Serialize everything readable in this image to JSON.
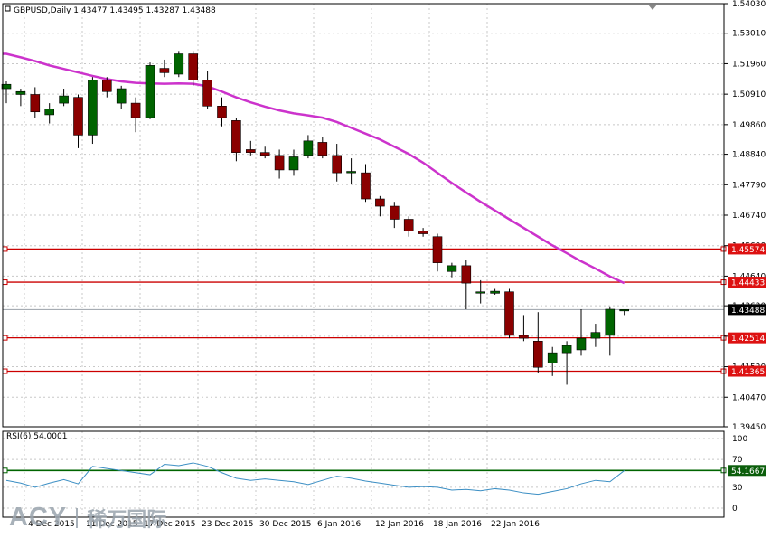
{
  "symbol_header": "GBPUSD,Daily  1.43477 1.43495 1.43287 1.43488",
  "rsi_header": "RSI(6) 54.0001",
  "watermark": {
    "brand": "ACY",
    "chinese": "稀万国际"
  },
  "colors": {
    "bull": "#006400",
    "bear": "#8b0000",
    "ma": "#cc33cc",
    "level": "#cc0000",
    "rsi_line": "#3c8fc4",
    "rsi_level": "#006400",
    "grid": "#c8c8c8",
    "frame": "#000000"
  },
  "chart_data": [
    {
      "type": "candlestick",
      "title": "GBPUSD,Daily",
      "x_tick_labels": [
        "4 Dec 2015",
        "11 Dec 2015",
        "17 Dec 2015",
        "23 Dec 2015",
        "30 Dec 2015",
        "6 Jan 2016",
        "12 Jan 2016",
        "18 Jan 2016",
        "22 Jan 2016"
      ],
      "y_tick_labels": [
        "1.54030",
        "1.53010",
        "1.51960",
        "1.50910",
        "1.49860",
        "1.48840",
        "1.47790",
        "1.46740",
        "1.45690",
        "1.44640",
        "1.43620",
        "1.42570",
        "1.41520",
        "1.40470",
        "1.39450"
      ],
      "ylim": [
        1.3945,
        1.5403
      ],
      "grid": true,
      "candles": [
        {
          "o": 1.511,
          "h": 1.5135,
          "l": 1.506,
          "c": 1.5125
        },
        {
          "o": 1.509,
          "h": 1.511,
          "l": 1.505,
          "c": 1.51
        },
        {
          "o": 1.509,
          "h": 1.5115,
          "l": 1.501,
          "c": 1.503
        },
        {
          "o": 1.502,
          "h": 1.506,
          "l": 1.499,
          "c": 1.504
        },
        {
          "o": 1.506,
          "h": 1.511,
          "l": 1.505,
          "c": 1.5085
        },
        {
          "o": 1.508,
          "h": 1.509,
          "l": 1.4905,
          "c": 1.495
        },
        {
          "o": 1.495,
          "h": 1.515,
          "l": 1.492,
          "c": 1.514
        },
        {
          "o": 1.514,
          "h": 1.515,
          "l": 1.508,
          "c": 1.51
        },
        {
          "o": 1.506,
          "h": 1.512,
          "l": 1.504,
          "c": 1.511
        },
        {
          "o": 1.506,
          "h": 1.508,
          "l": 1.496,
          "c": 1.501
        },
        {
          "o": 1.501,
          "h": 1.52,
          "l": 1.5005,
          "c": 1.519
        },
        {
          "o": 1.518,
          "h": 1.521,
          "l": 1.515,
          "c": 1.5165
        },
        {
          "o": 1.516,
          "h": 1.524,
          "l": 1.515,
          "c": 1.523
        },
        {
          "o": 1.523,
          "h": 1.524,
          "l": 1.512,
          "c": 1.514
        },
        {
          "o": 1.514,
          "h": 1.517,
          "l": 1.504,
          "c": 1.505
        },
        {
          "o": 1.505,
          "h": 1.508,
          "l": 1.498,
          "c": 1.501
        },
        {
          "o": 1.5,
          "h": 1.501,
          "l": 1.486,
          "c": 1.489
        },
        {
          "o": 1.49,
          "h": 1.493,
          "l": 1.488,
          "c": 1.489
        },
        {
          "o": 1.489,
          "h": 1.491,
          "l": 1.487,
          "c": 1.488
        },
        {
          "o": 1.488,
          "h": 1.49,
          "l": 1.48,
          "c": 1.483
        },
        {
          "o": 1.483,
          "h": 1.49,
          "l": 1.481,
          "c": 1.4875
        },
        {
          "o": 1.488,
          "h": 1.495,
          "l": 1.487,
          "c": 1.493
        },
        {
          "o": 1.4925,
          "h": 1.4945,
          "l": 1.487,
          "c": 1.488
        },
        {
          "o": 1.488,
          "h": 1.492,
          "l": 1.479,
          "c": 1.482
        },
        {
          "o": 1.482,
          "h": 1.487,
          "l": 1.478,
          "c": 1.4825
        },
        {
          "o": 1.482,
          "h": 1.485,
          "l": 1.472,
          "c": 1.473
        },
        {
          "o": 1.473,
          "h": 1.474,
          "l": 1.467,
          "c": 1.4705
        },
        {
          "o": 1.4705,
          "h": 1.472,
          "l": 1.463,
          "c": 1.466
        },
        {
          "o": 1.466,
          "h": 1.467,
          "l": 1.46,
          "c": 1.462
        },
        {
          "o": 1.462,
          "h": 1.463,
          "l": 1.46,
          "c": 1.461
        },
        {
          "o": 1.46,
          "h": 1.461,
          "l": 1.448,
          "c": 1.451
        },
        {
          "o": 1.448,
          "h": 1.451,
          "l": 1.446,
          "c": 1.45
        },
        {
          "o": 1.45,
          "h": 1.452,
          "l": 1.435,
          "c": 1.444
        },
        {
          "o": 1.441,
          "h": 1.445,
          "l": 1.437,
          "c": 1.441
        },
        {
          "o": 1.4405,
          "h": 1.442,
          "l": 1.44,
          "c": 1.4412
        },
        {
          "o": 1.441,
          "h": 1.442,
          "l": 1.425,
          "c": 1.426
        },
        {
          "o": 1.426,
          "h": 1.433,
          "l": 1.424,
          "c": 1.425
        },
        {
          "o": 1.424,
          "h": 1.434,
          "l": 1.413,
          "c": 1.415
        },
        {
          "o": 1.4165,
          "h": 1.422,
          "l": 1.412,
          "c": 1.42
        },
        {
          "o": 1.42,
          "h": 1.424,
          "l": 1.409,
          "c": 1.4225
        },
        {
          "o": 1.421,
          "h": 1.435,
          "l": 1.419,
          "c": 1.425
        },
        {
          "o": 1.425,
          "h": 1.43,
          "l": 1.422,
          "c": 1.427
        },
        {
          "o": 1.426,
          "h": 1.436,
          "l": 1.419,
          "c": 1.435
        },
        {
          "o": 1.4349,
          "h": 1.435,
          "l": 1.433,
          "c": 1.4349
        }
      ],
      "moving_average": [
        1.523,
        1.5218,
        1.5205,
        1.519,
        1.5178,
        1.5166,
        1.5154,
        1.5143,
        1.5135,
        1.513,
        1.5128,
        1.5127,
        1.5128,
        1.5127,
        1.5118,
        1.51,
        1.508,
        1.5063,
        1.5048,
        1.5035,
        1.5025,
        1.5018,
        1.501,
        1.4995,
        1.4975,
        1.4955,
        1.4935,
        1.491,
        1.4885,
        1.4855,
        1.482,
        1.4785,
        1.4752,
        1.472,
        1.469,
        1.466,
        1.463,
        1.46,
        1.457,
        1.4543,
        1.4515,
        1.449,
        1.4463,
        1.444
      ],
      "price_levels": [
        {
          "label": "1.45574",
          "value": 1.45574
        },
        {
          "label": "1.44433",
          "value": 1.44433
        },
        {
          "label": "1.42514",
          "value": 1.42514
        },
        {
          "label": "1.41365",
          "value": 1.41365
        }
      ],
      "current_price": {
        "label": "1.43488",
        "value": 1.43488
      }
    },
    {
      "type": "line",
      "title": "RSI(6) 54.0001",
      "ylim": [
        0,
        100
      ],
      "y_tick_labels": [
        "100",
        "70",
        "30",
        "0"
      ],
      "level": {
        "label": "54.1667",
        "value": 54.1667
      },
      "values": [
        40,
        36,
        30,
        36,
        41,
        35,
        60,
        57,
        54,
        51,
        48,
        63,
        61,
        65,
        60,
        51,
        43,
        40,
        42,
        40,
        38,
        34,
        40,
        46,
        43,
        39,
        36,
        33,
        30,
        31,
        30,
        26,
        27,
        25,
        28,
        26,
        22,
        20,
        24,
        28,
        35,
        40,
        38,
        54
      ]
    }
  ]
}
